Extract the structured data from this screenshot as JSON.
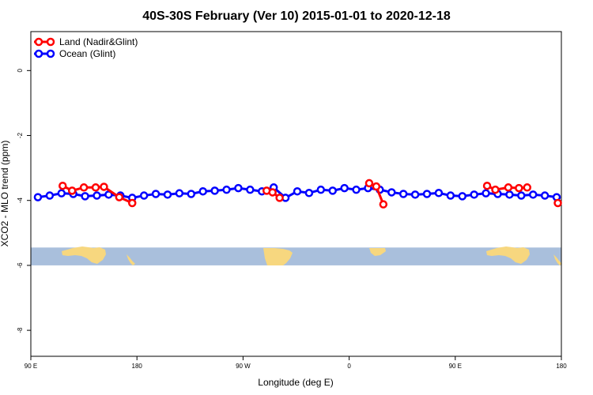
{
  "chart_data": {
    "type": "line",
    "title": "40S-30S February (Ver 10)   2015-01-01 to 2020-12-18",
    "xlabel": "Longitude (deg E)",
    "ylabel": "XCO2 - MLO trend (ppm)",
    "x_ticks": [
      {
        "value": 90,
        "label": "90 E"
      },
      {
        "value": 180,
        "label": "180"
      },
      {
        "value": 270,
        "label": "90 W"
      },
      {
        "value": 360,
        "label": "0"
      },
      {
        "value": 450,
        "label": "90 E"
      },
      {
        "value": 540,
        "label": "180"
      }
    ],
    "y_ticks": [
      {
        "value": 0,
        "label": "0"
      },
      {
        "value": -2,
        "label": "-2"
      },
      {
        "value": -4,
        "label": "-4"
      },
      {
        "value": -6,
        "label": "-6"
      },
      {
        "value": -8,
        "label": "-8"
      }
    ],
    "xlim": [
      90,
      540
    ],
    "ylim": [
      -8.8,
      1.2
    ],
    "legend_position": "top-left",
    "map_strip": {
      "y_top": -5.45,
      "y_bottom": -6.0,
      "ocean_color": "#a9bfdc",
      "land_color": "#f7d77f"
    },
    "series": [
      {
        "name": "Land (Nadir&Glint)",
        "color": "#ff0000",
        "segments": [
          [
            [
              117,
              -3.55
            ],
            [
              125,
              -3.7
            ],
            [
              135,
              -3.6
            ],
            [
              145,
              -3.6
            ],
            [
              152,
              -3.58
            ],
            [
              165,
              -3.9
            ],
            [
              176,
              -4.08
            ]
          ],
          [
            [
              290,
              -3.7
            ],
            [
              295,
              -3.75
            ],
            [
              301,
              -3.92
            ]
          ],
          [
            [
              377,
              -3.47
            ],
            [
              383,
              -3.57
            ],
            [
              389,
              -4.12
            ]
          ],
          [
            [
              477,
              -3.55
            ],
            [
              484,
              -3.67
            ],
            [
              495,
              -3.6
            ],
            [
              504,
              -3.62
            ],
            [
              511,
              -3.6
            ]
          ],
          [
            [
              537,
              -4.08
            ]
          ]
        ]
      },
      {
        "name": "Ocean (Glint)",
        "color": "#0000ff",
        "segments": [
          [
            [
              96,
              -3.9
            ],
            [
              106,
              -3.85
            ],
            [
              116,
              -3.78
            ],
            [
              126,
              -3.8
            ],
            [
              136,
              -3.87
            ],
            [
              146,
              -3.85
            ],
            [
              156,
              -3.82
            ],
            [
              166,
              -3.85
            ],
            [
              176,
              -3.92
            ],
            [
              186,
              -3.85
            ],
            [
              196,
              -3.8
            ],
            [
              206,
              -3.82
            ],
            [
              216,
              -3.78
            ],
            [
              226,
              -3.8
            ],
            [
              236,
              -3.72
            ],
            [
              246,
              -3.7
            ],
            [
              256,
              -3.67
            ],
            [
              266,
              -3.62
            ],
            [
              276,
              -3.67
            ],
            [
              286,
              -3.72
            ],
            [
              296,
              -3.6
            ],
            [
              306,
              -3.92
            ],
            [
              316,
              -3.72
            ],
            [
              326,
              -3.77
            ],
            [
              336,
              -3.67
            ],
            [
              346,
              -3.7
            ],
            [
              356,
              -3.62
            ],
            [
              366,
              -3.67
            ],
            [
              376,
              -3.62
            ],
            [
              386,
              -3.67
            ],
            [
              396,
              -3.75
            ],
            [
              406,
              -3.8
            ],
            [
              416,
              -3.82
            ],
            [
              426,
              -3.8
            ],
            [
              436,
              -3.77
            ],
            [
              446,
              -3.85
            ],
            [
              456,
              -3.87
            ],
            [
              466,
              -3.82
            ],
            [
              476,
              -3.78
            ],
            [
              486,
              -3.8
            ],
            [
              496,
              -3.82
            ],
            [
              506,
              -3.85
            ],
            [
              516,
              -3.82
            ],
            [
              526,
              -3.85
            ],
            [
              536,
              -3.9
            ]
          ]
        ]
      }
    ]
  }
}
